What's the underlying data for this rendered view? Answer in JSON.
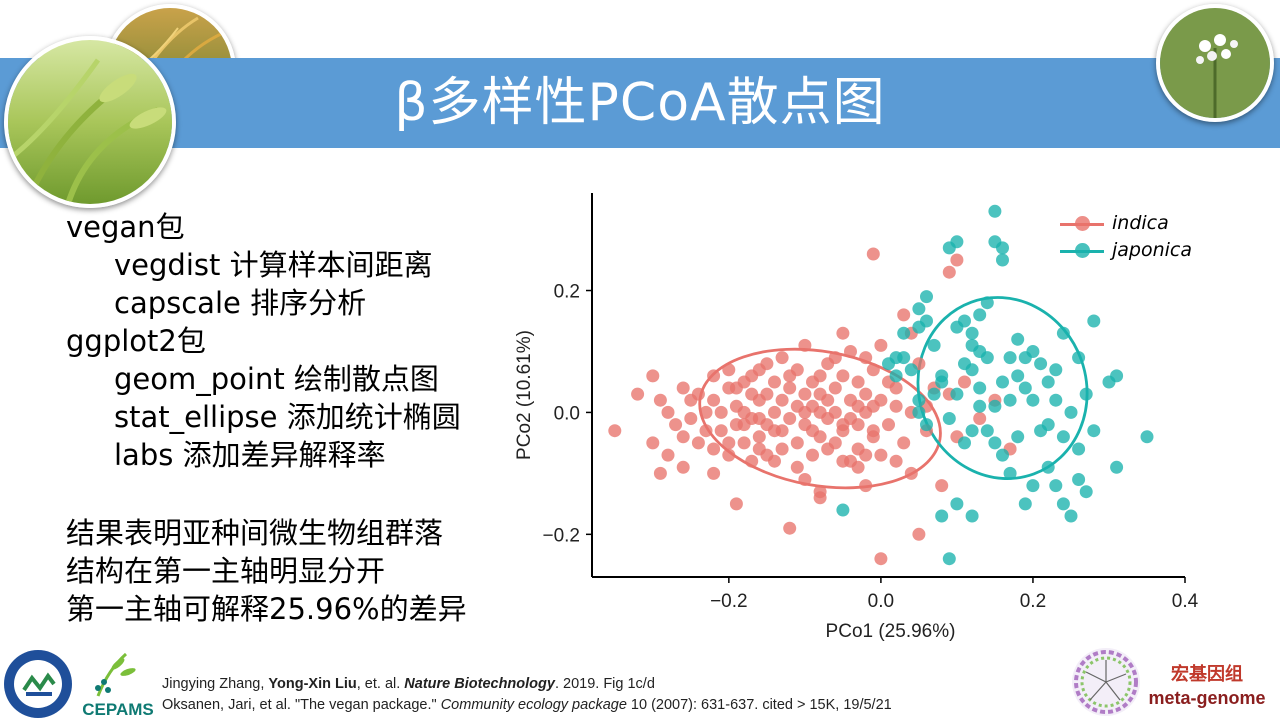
{
  "slide": {
    "title": "β多样性PCoA散点图",
    "bullets": [
      {
        "text": "vegan包",
        "level": 1
      },
      {
        "text": "vegdist 计算样本间距离",
        "level": 2
      },
      {
        "text": "capscale 排序分析",
        "level": 2
      },
      {
        "text": "ggplot2包",
        "level": 1
      },
      {
        "text": "geom_point 绘制散点图",
        "level": 2
      },
      {
        "text": "stat_ellipse 添加统计椭圆",
        "level": 2
      },
      {
        "text": "labs 添加差异解释率",
        "level": 2
      }
    ],
    "conclusion": [
      "结果表明亚种间微生物组群落",
      "结构在第一主轴明显分开",
      "第一主轴可解释25.96%的差异"
    ],
    "references": {
      "line1": {
        "a": "Jingying Zhang,",
        "b": "Yong-Xin Liu",
        "c": ", et. al.",
        "journal": "Nature Biotechnology",
        "d": ". 2019. Fig 1c/d"
      },
      "line2": {
        "a": "Oksanen, Jari, et al. \"The vegan package.\"",
        "journal": "Community ecology package",
        "d": "10 (2007): 631-637. cited > 15K, 19/5/21"
      }
    },
    "logos": {
      "cepams": "CEPAMS",
      "brand_cn": "宏基因组",
      "brand_en": "meta-genome"
    }
  },
  "chart_data": {
    "type": "scatter",
    "xlabel": "PCo1 (25.96%)",
    "ylabel": "PCo2 (10.61%)",
    "xlim": [
      -0.38,
      0.4
    ],
    "ylim": [
      -0.27,
      0.36
    ],
    "xticks": [
      -0.2,
      0.0,
      0.2,
      0.4
    ],
    "yticks": [
      -0.2,
      0.0,
      0.2
    ],
    "xtick_labels": [
      "−0.2",
      "0.0",
      "0.2",
      "0.4"
    ],
    "ytick_labels": [
      "−0.2",
      "0.0",
      "0.2"
    ],
    "grid": false,
    "legend_position": "top-right",
    "series": [
      {
        "name": "indica",
        "color": "#e8736c",
        "ellipse": {
          "cx": -0.08,
          "cy": -0.01,
          "rx": 0.16,
          "ry": 0.11,
          "angle": -10
        },
        "points": [
          [
            -0.35,
            -0.03
          ],
          [
            -0.32,
            0.03
          ],
          [
            -0.3,
            -0.05
          ],
          [
            -0.29,
            0.02
          ],
          [
            -0.29,
            -0.1
          ],
          [
            -0.28,
            -0.07
          ],
          [
            -0.28,
            0.0
          ],
          [
            -0.27,
            -0.02
          ],
          [
            -0.26,
            -0.04
          ],
          [
            -0.26,
            0.04
          ],
          [
            -0.26,
            -0.09
          ],
          [
            -0.25,
            0.02
          ],
          [
            -0.25,
            -0.01
          ],
          [
            -0.24,
            0.03
          ],
          [
            -0.24,
            -0.05
          ],
          [
            -0.23,
            0.0
          ],
          [
            -0.23,
            -0.03
          ],
          [
            -0.22,
            0.06
          ],
          [
            -0.22,
            -0.06
          ],
          [
            -0.22,
            0.02
          ],
          [
            -0.21,
            0.0
          ],
          [
            -0.21,
            -0.03
          ],
          [
            -0.2,
            0.04
          ],
          [
            -0.2,
            -0.07
          ],
          [
            -0.2,
            0.07
          ],
          [
            -0.19,
            0.01
          ],
          [
            -0.19,
            -0.02
          ],
          [
            -0.19,
            -0.15
          ],
          [
            -0.18,
            0.05
          ],
          [
            -0.18,
            -0.05
          ],
          [
            -0.18,
            0.0
          ],
          [
            -0.17,
            0.03
          ],
          [
            -0.17,
            -0.08
          ],
          [
            -0.17,
            0.06
          ],
          [
            -0.16,
            -0.01
          ],
          [
            -0.16,
            0.02
          ],
          [
            -0.16,
            -0.04
          ],
          [
            -0.15,
            0.08
          ],
          [
            -0.15,
            -0.07
          ],
          [
            -0.15,
            0.03
          ],
          [
            -0.14,
            0.0
          ],
          [
            -0.14,
            -0.03
          ],
          [
            -0.14,
            0.05
          ],
          [
            -0.13,
            0.02
          ],
          [
            -0.13,
            -0.06
          ],
          [
            -0.13,
            0.09
          ],
          [
            -0.12,
            -0.01
          ],
          [
            -0.12,
            0.04
          ],
          [
            -0.12,
            -0.19
          ],
          [
            -0.11,
            0.01
          ],
          [
            -0.11,
            -0.05
          ],
          [
            -0.11,
            0.07
          ],
          [
            -0.1,
            0.03
          ],
          [
            -0.1,
            -0.02
          ],
          [
            -0.1,
            0.11
          ],
          [
            -0.09,
            0.05
          ],
          [
            -0.09,
            -0.07
          ],
          [
            -0.09,
            0.01
          ],
          [
            -0.08,
            0.0
          ],
          [
            -0.08,
            -0.04
          ],
          [
            -0.08,
            0.06
          ],
          [
            -0.08,
            -0.14
          ],
          [
            -0.07,
            0.02
          ],
          [
            -0.07,
            -0.01
          ],
          [
            -0.07,
            0.08
          ],
          [
            -0.06,
            -0.05
          ],
          [
            -0.06,
            0.04
          ],
          [
            -0.06,
            0.0
          ],
          [
            -0.05,
            0.13
          ],
          [
            -0.05,
            -0.03
          ],
          [
            -0.05,
            0.06
          ],
          [
            -0.04,
            0.02
          ],
          [
            -0.04,
            -0.08
          ],
          [
            -0.04,
            0.1
          ],
          [
            -0.03,
            -0.02
          ],
          [
            -0.03,
            0.05
          ],
          [
            -0.03,
            -0.06
          ],
          [
            -0.02,
            0.03
          ],
          [
            -0.02,
            -0.12
          ],
          [
            -0.02,
            0.0
          ],
          [
            -0.01,
            0.07
          ],
          [
            -0.01,
            -0.04
          ],
          [
            -0.01,
            0.26
          ],
          [
            0.0,
            0.02
          ],
          [
            0.0,
            -0.07
          ],
          [
            0.0,
            -0.24
          ],
          [
            0.01,
            0.05
          ],
          [
            0.01,
            -0.02
          ],
          [
            0.02,
            -0.08
          ],
          [
            0.02,
            0.04
          ],
          [
            0.03,
            0.16
          ],
          [
            0.03,
            -0.05
          ],
          [
            0.04,
            0.0
          ],
          [
            0.04,
            -0.1
          ],
          [
            0.05,
            0.08
          ],
          [
            0.05,
            -0.2
          ],
          [
            0.06,
            -0.03
          ],
          [
            0.07,
            0.04
          ],
          [
            0.08,
            -0.12
          ],
          [
            -0.3,
            0.06
          ],
          [
            -0.22,
            -0.1
          ],
          [
            -0.2,
            -0.05
          ],
          [
            -0.19,
            0.04
          ],
          [
            -0.17,
            -0.01
          ],
          [
            -0.16,
            0.07
          ],
          [
            -0.15,
            -0.02
          ],
          [
            -0.14,
            -0.08
          ],
          [
            -0.13,
            -0.03
          ],
          [
            -0.12,
            0.06
          ],
          [
            -0.11,
            -0.09
          ],
          [
            -0.1,
            0.0
          ],
          [
            -0.09,
            -0.03
          ],
          [
            -0.08,
            0.03
          ],
          [
            -0.07,
            -0.06
          ],
          [
            -0.06,
            0.09
          ],
          [
            -0.05,
            -0.08
          ],
          [
            -0.04,
            -0.01
          ],
          [
            -0.03,
            0.01
          ],
          [
            -0.02,
            -0.07
          ],
          [
            -0.01,
            0.01
          ],
          [
            0.0,
            0.11
          ],
          [
            0.02,
            0.01
          ],
          [
            0.04,
            0.13
          ],
          [
            0.06,
            0.01
          ],
          [
            0.09,
            0.03
          ],
          [
            0.1,
            -0.04
          ],
          [
            0.11,
            0.05
          ],
          [
            0.13,
            -0.01
          ],
          [
            0.15,
            0.02
          ],
          [
            0.17,
            -0.06
          ],
          [
            0.09,
            0.23
          ],
          [
            0.1,
            0.25
          ],
          [
            -0.18,
            -0.02
          ],
          [
            -0.16,
            -0.06
          ],
          [
            -0.1,
            -0.11
          ],
          [
            -0.08,
            -0.13
          ],
          [
            -0.05,
            -0.02
          ],
          [
            -0.03,
            -0.09
          ],
          [
            -0.02,
            0.09
          ],
          [
            -0.01,
            -0.03
          ]
        ]
      },
      {
        "name": "japonica",
        "color": "#1ab2ad",
        "ellipse": {
          "cx": 0.16,
          "cy": 0.04,
          "rx": 0.11,
          "ry": 0.15,
          "angle": 20
        },
        "points": [
          [
            0.15,
            0.33
          ],
          [
            0.15,
            0.28
          ],
          [
            0.16,
            0.27
          ],
          [
            0.16,
            0.25
          ],
          [
            0.09,
            0.27
          ],
          [
            0.1,
            0.28
          ],
          [
            0.06,
            0.19
          ],
          [
            0.05,
            0.17
          ],
          [
            0.05,
            0.14
          ],
          [
            0.06,
            0.15
          ],
          [
            0.07,
            0.11
          ],
          [
            0.1,
            0.14
          ],
          [
            0.11,
            0.15
          ],
          [
            0.12,
            0.13
          ],
          [
            0.13,
            0.16
          ],
          [
            0.14,
            0.18
          ],
          [
            0.12,
            0.11
          ],
          [
            0.11,
            0.08
          ],
          [
            0.12,
            0.07
          ],
          [
            0.13,
            0.1
          ],
          [
            0.14,
            0.09
          ],
          [
            0.02,
            0.09
          ],
          [
            0.01,
            0.08
          ],
          [
            0.02,
            0.06
          ],
          [
            0.03,
            0.09
          ],
          [
            0.04,
            0.07
          ],
          [
            0.05,
            0.02
          ],
          [
            0.05,
            0.0
          ],
          [
            0.06,
            -0.02
          ],
          [
            0.07,
            0.03
          ],
          [
            0.08,
            0.05
          ],
          [
            0.09,
            -0.01
          ],
          [
            0.1,
            0.03
          ],
          [
            0.11,
            -0.05
          ],
          [
            0.12,
            -0.03
          ],
          [
            0.13,
            0.04
          ],
          [
            0.14,
            -0.03
          ],
          [
            0.15,
            0.01
          ],
          [
            0.16,
            0.05
          ],
          [
            0.17,
            0.09
          ],
          [
            0.18,
            0.06
          ],
          [
            0.19,
            0.04
          ],
          [
            0.2,
            0.02
          ],
          [
            0.2,
            0.1
          ],
          [
            0.21,
            0.08
          ],
          [
            0.22,
            0.05
          ],
          [
            0.22,
            -0.02
          ],
          [
            0.23,
            0.07
          ],
          [
            0.24,
            -0.04
          ],
          [
            0.24,
            0.13
          ],
          [
            0.25,
            0.0
          ],
          [
            0.26,
            -0.06
          ],
          [
            0.26,
            0.09
          ],
          [
            0.27,
            0.03
          ],
          [
            0.28,
            -0.03
          ],
          [
            0.28,
            0.15
          ],
          [
            0.3,
            0.05
          ],
          [
            0.31,
            0.06
          ],
          [
            0.31,
            -0.09
          ],
          [
            0.35,
            -0.04
          ],
          [
            0.16,
            -0.07
          ],
          [
            0.17,
            -0.1
          ],
          [
            0.18,
            -0.04
          ],
          [
            0.19,
            -0.15
          ],
          [
            0.2,
            -0.12
          ],
          [
            0.21,
            -0.03
          ],
          [
            0.22,
            -0.09
          ],
          [
            0.23,
            -0.12
          ],
          [
            0.24,
            -0.15
          ],
          [
            0.25,
            -0.17
          ],
          [
            0.26,
            -0.11
          ],
          [
            0.27,
            -0.13
          ],
          [
            0.09,
            -0.24
          ],
          [
            0.08,
            -0.17
          ],
          [
            0.1,
            -0.15
          ],
          [
            0.12,
            -0.17
          ],
          [
            0.15,
            -0.05
          ],
          [
            0.17,
            0.02
          ],
          [
            0.19,
            0.09
          ],
          [
            0.03,
            0.13
          ],
          [
            -0.05,
            -0.16
          ],
          [
            0.08,
            0.06
          ],
          [
            0.13,
            0.01
          ],
          [
            0.18,
            0.12
          ],
          [
            0.23,
            0.02
          ]
        ]
      }
    ]
  }
}
